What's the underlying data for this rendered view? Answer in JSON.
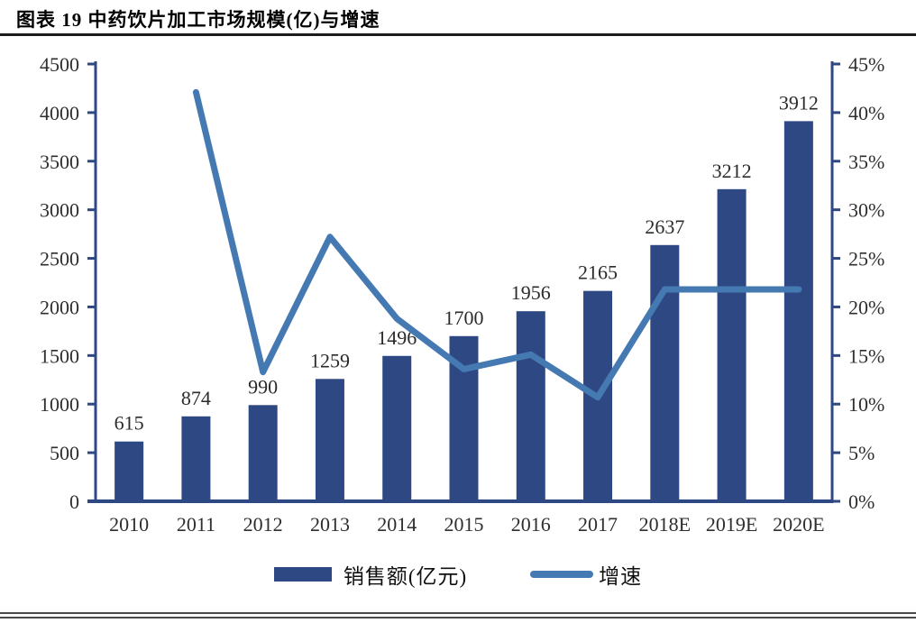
{
  "page": {
    "title": "图表 19 中药饮片加工市场规模(亿)与增速"
  },
  "chart_data": {
    "type": "bar",
    "subtype": "bar+line combo, dual axis",
    "title": "图表 19 中药饮片加工市场规模(亿)与增速",
    "categories": [
      "2010",
      "2011",
      "2012",
      "2013",
      "2014",
      "2015",
      "2016",
      "2017",
      "2018E",
      "2019E",
      "2020E"
    ],
    "series": [
      {
        "name": "销售额(亿元)",
        "type": "bar",
        "axis": "left",
        "color": "#2E4883",
        "values": [
          615,
          874,
          990,
          1259,
          1496,
          1700,
          1956,
          2165,
          2637,
          3212,
          3912
        ],
        "labels": [
          "615",
          "874",
          "990",
          "1259",
          "1496",
          "1700",
          "1956",
          "2165",
          "2637",
          "3212",
          "3912"
        ]
      },
      {
        "name": "增速",
        "type": "line",
        "axis": "right",
        "color": "#4579B2",
        "values": [
          null,
          42.1,
          13.3,
          27.2,
          18.8,
          13.6,
          15.1,
          10.7,
          21.8,
          21.8,
          21.8
        ]
      }
    ],
    "left_axis": {
      "min": 0,
      "max": 4500,
      "step": 500,
      "ticks": [
        "0",
        "500",
        "1000",
        "1500",
        "2000",
        "2500",
        "3000",
        "3500",
        "4000",
        "4500"
      ]
    },
    "right_axis": {
      "min": 0,
      "max": 45,
      "step": 5,
      "ticks": [
        "0%",
        "5%",
        "10%",
        "15%",
        "20%",
        "25%",
        "30%",
        "35%",
        "40%",
        "45%"
      ]
    },
    "grid": "off",
    "legend_position": "bottom",
    "legend": [
      {
        "label": "销售额(亿元)",
        "swatch": "bar"
      },
      {
        "label": "增速",
        "swatch": "line"
      }
    ],
    "colors": {
      "axis": "#2E4883",
      "tick_text": "#2e2e2e",
      "value_label_text": "#2b2b2b"
    }
  }
}
